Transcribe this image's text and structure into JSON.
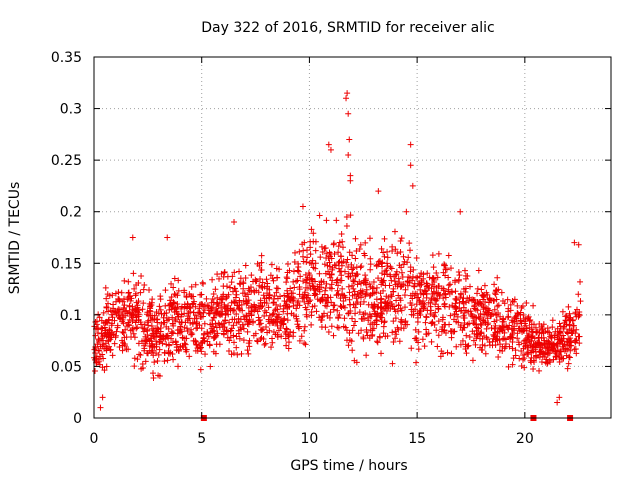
{
  "chart_data": {
    "type": "scatter",
    "title": "Day 322 of 2016, SRMTID for receiver alic",
    "xlabel": "GPS time / hours",
    "ylabel": "SRMTID / TECUs",
    "xlim": [
      0,
      24
    ],
    "ylim": [
      0,
      0.35
    ],
    "x_ticks": [
      0,
      5,
      10,
      15,
      20
    ],
    "y_ticks": [
      0,
      0.05,
      0.1,
      0.15,
      0.2,
      0.25,
      0.3,
      0.35
    ],
    "x_tick_labels": [
      "0",
      "5",
      "10",
      "15",
      "20"
    ],
    "y_tick_labels": [
      "0",
      "0.05",
      "0.1",
      "0.15",
      "0.2",
      "0.25",
      "0.3",
      "0.35"
    ],
    "grid": true,
    "marker": "plus",
    "series_color": "#ee0000",
    "envelope": {
      "hours": [
        0,
        1,
        2,
        3,
        4,
        5,
        6,
        7,
        8,
        9,
        10,
        11,
        12,
        13,
        14,
        15,
        16,
        17,
        18,
        19,
        20,
        21,
        22,
        22.6
      ],
      "low": [
        0.03,
        0.04,
        0.04,
        0.03,
        0.04,
        0.04,
        0.05,
        0.05,
        0.05,
        0.05,
        0.06,
        0.06,
        0.05,
        0.05,
        0.05,
        0.05,
        0.05,
        0.05,
        0.05,
        0.05,
        0.04,
        0.04,
        0.04,
        0.05
      ],
      "high": [
        0.11,
        0.15,
        0.15,
        0.13,
        0.15,
        0.14,
        0.15,
        0.16,
        0.16,
        0.16,
        0.2,
        0.2,
        0.2,
        0.18,
        0.19,
        0.18,
        0.17,
        0.16,
        0.15,
        0.14,
        0.12,
        0.1,
        0.11,
        0.15
      ]
    },
    "notable_points": [
      {
        "x": 0.3,
        "y": 0.01
      },
      {
        "x": 0.4,
        "y": 0.02
      },
      {
        "x": 1.8,
        "y": 0.175
      },
      {
        "x": 3.4,
        "y": 0.175
      },
      {
        "x": 6.5,
        "y": 0.19
      },
      {
        "x": 9.7,
        "y": 0.205
      },
      {
        "x": 10.9,
        "y": 0.265
      },
      {
        "x": 11.0,
        "y": 0.26
      },
      {
        "x": 11.7,
        "y": 0.31
      },
      {
        "x": 11.75,
        "y": 0.315
      },
      {
        "x": 11.8,
        "y": 0.295
      },
      {
        "x": 11.85,
        "y": 0.27
      },
      {
        "x": 11.8,
        "y": 0.255
      },
      {
        "x": 11.9,
        "y": 0.235
      },
      {
        "x": 11.9,
        "y": 0.23
      },
      {
        "x": 13.2,
        "y": 0.22
      },
      {
        "x": 14.7,
        "y": 0.265
      },
      {
        "x": 14.7,
        "y": 0.245
      },
      {
        "x": 14.8,
        "y": 0.225
      },
      {
        "x": 14.5,
        "y": 0.2
      },
      {
        "x": 17.0,
        "y": 0.2
      },
      {
        "x": 21.5,
        "y": 0.015
      },
      {
        "x": 21.6,
        "y": 0.02
      },
      {
        "x": 22.3,
        "y": 0.17
      },
      {
        "x": 22.5,
        "y": 0.168
      }
    ],
    "data_gaps_hours": [
      5.1,
      20.4,
      22.1
    ],
    "point_count": 2300
  }
}
